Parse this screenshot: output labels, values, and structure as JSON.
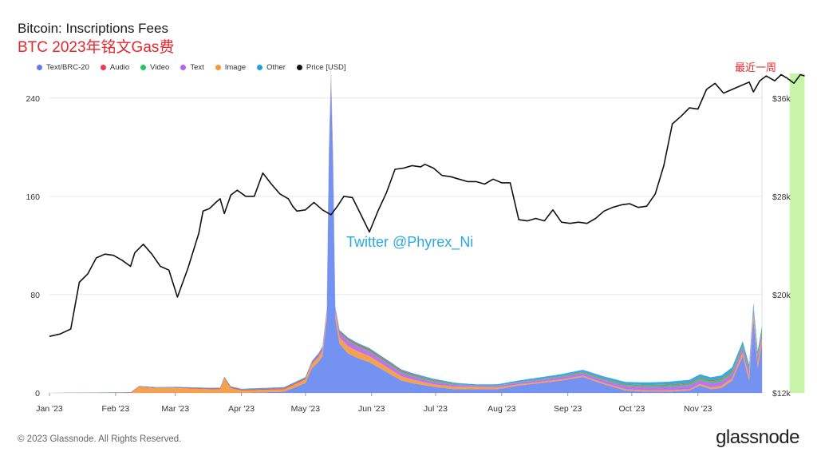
{
  "title": "Bitcoin: Inscriptions Fees",
  "subtitle": "BTC 2023年铭文Gas费",
  "annotation_recent": "最近一周",
  "watermark": "Twitter @Phyrex_Ni",
  "footer": {
    "copyright": "© 2023 Glassnode. All Rights Reserved.",
    "brand": "glassnode"
  },
  "colors": {
    "text_brc20": "#5b7ff0",
    "audio": "#f0374e",
    "video": "#22c55e",
    "text": "#b563f0",
    "image": "#f5973a",
    "other": "#1fa3dc",
    "price": "#111111",
    "highlight": "#b6f08c"
  },
  "chart_data": {
    "type": "area",
    "x_ticks": [
      "Jan '23",
      "Feb '23",
      "Mar '23",
      "Apr '23",
      "May '23",
      "Jun '23",
      "Jul '23",
      "Aug '23",
      "Sep '23",
      "Oct '23",
      "Nov '23"
    ],
    "y_left_ticks": [
      "0",
      "80",
      "160",
      "240"
    ],
    "y_left_range": [
      0,
      260
    ],
    "y_right_ticks": [
      "$12k",
      "$20k",
      "$28k",
      "$36k"
    ],
    "y_right_range": [
      12000,
      38000
    ],
    "legend": [
      "Text/BRC-20",
      "Audio",
      "Video",
      "Text",
      "Image",
      "Other",
      "Price [USD]"
    ],
    "series": [
      {
        "name": "Text/BRC-20",
        "x": [
          0,
          75,
          90,
          110,
          120,
          123,
          126,
          128,
          130,
          131,
          132,
          133,
          134,
          136,
          138,
          140,
          145,
          150,
          155,
          160,
          165,
          170,
          180,
          190,
          200,
          210,
          220,
          230,
          240,
          250,
          260,
          270,
          280,
          290,
          300,
          305,
          310,
          315,
          320,
          325,
          328,
          330,
          332,
          335,
          338,
          340,
          342,
          344,
          346,
          348,
          350,
          352,
          354
        ],
        "values": [
          0,
          0,
          0,
          1,
          8,
          20,
          25,
          30,
          60,
          190,
          255,
          180,
          60,
          40,
          36,
          32,
          28,
          25,
          20,
          15,
          10,
          8,
          5,
          3,
          3,
          3,
          6,
          8,
          10,
          13,
          7,
          2,
          1,
          1,
          2,
          6,
          3,
          4,
          10,
          30,
          10,
          60,
          20,
          50,
          80,
          40,
          110,
          60,
          140,
          70,
          35,
          30,
          20
        ]
      },
      {
        "name": "Image",
        "x": [
          0,
          38,
          42,
          50,
          60,
          75,
          80,
          82,
          85,
          90,
          100,
          110,
          120,
          130,
          140,
          150,
          160,
          170,
          180,
          200,
          220,
          240,
          260,
          280,
          300,
          320,
          340,
          354
        ],
        "values": [
          0,
          0,
          5,
          4,
          4,
          3,
          3,
          12,
          4,
          2,
          2,
          2,
          3,
          4,
          6,
          5,
          4,
          3,
          2,
          2,
          1,
          1,
          1,
          1,
          1,
          2,
          6,
          8
        ]
      },
      {
        "name": "Text",
        "x": [
          0,
          120,
          140,
          160,
          180,
          200,
          340,
          354
        ],
        "values": [
          0,
          0,
          4,
          3,
          2,
          1,
          4,
          6
        ]
      },
      {
        "name": "Video",
        "x": [
          0,
          120,
          140,
          160,
          180,
          200,
          340,
          354
        ],
        "values": [
          0,
          0,
          1,
          1,
          1,
          0,
          2,
          3
        ]
      },
      {
        "name": "Audio",
        "x": [
          0,
          130,
          160,
          200,
          354
        ],
        "values": [
          0,
          1,
          1,
          0,
          1
        ]
      },
      {
        "name": "Other",
        "x": [
          0,
          130,
          160,
          200,
          340,
          354
        ],
        "values": [
          0,
          1,
          1,
          1,
          3,
          5
        ]
      },
      {
        "name": "Price [USD]",
        "x": [
          0,
          5,
          10,
          14,
          18,
          22,
          26,
          30,
          34,
          38,
          40,
          44,
          48,
          52,
          56,
          60,
          65,
          70,
          72,
          75,
          78,
          80,
          82,
          85,
          88,
          92,
          96,
          100,
          104,
          108,
          112,
          114,
          116,
          120,
          124,
          128,
          132,
          135,
          138,
          142,
          146,
          150,
          154,
          158,
          162,
          166,
          170,
          174,
          176,
          180,
          184,
          188,
          192,
          196,
          200,
          204,
          208,
          212,
          216,
          220,
          224,
          228,
          232,
          236,
          240,
          244,
          248,
          252,
          256,
          260,
          264,
          268,
          272,
          276,
          280,
          284,
          288,
          292,
          296,
          300,
          304,
          308,
          312,
          316,
          320,
          324,
          328,
          330,
          333,
          336,
          340,
          343,
          346,
          349,
          352,
          354
        ],
        "values": [
          16600,
          16800,
          17200,
          21000,
          21700,
          23000,
          23300,
          23200,
          22800,
          22300,
          23400,
          24100,
          23300,
          22300,
          22000,
          19800,
          22200,
          25000,
          26800,
          27000,
          27500,
          27800,
          26600,
          28100,
          28500,
          28000,
          28000,
          29900,
          29000,
          28200,
          27800,
          27200,
          26800,
          26900,
          27500,
          26900,
          26500,
          27200,
          28000,
          27900,
          26500,
          25100,
          26800,
          28300,
          30200,
          30300,
          30500,
          30400,
          30600,
          30300,
          29700,
          29600,
          29400,
          29200,
          29200,
          29000,
          29400,
          29100,
          29100,
          26100,
          26000,
          26200,
          26000,
          26900,
          25900,
          25800,
          25900,
          25800,
          26200,
          26800,
          27100,
          27300,
          27400,
          27100,
          27200,
          28200,
          30500,
          33900,
          34500,
          35200,
          35100,
          36700,
          37200,
          36400,
          36700,
          37000,
          37300,
          36500,
          37400,
          37800,
          37400,
          37900,
          37600,
          37200,
          37900,
          37800
        ]
      }
    ],
    "grid": true,
    "legend_position": "top-left",
    "highlight_range": [
      347,
      354
    ]
  }
}
